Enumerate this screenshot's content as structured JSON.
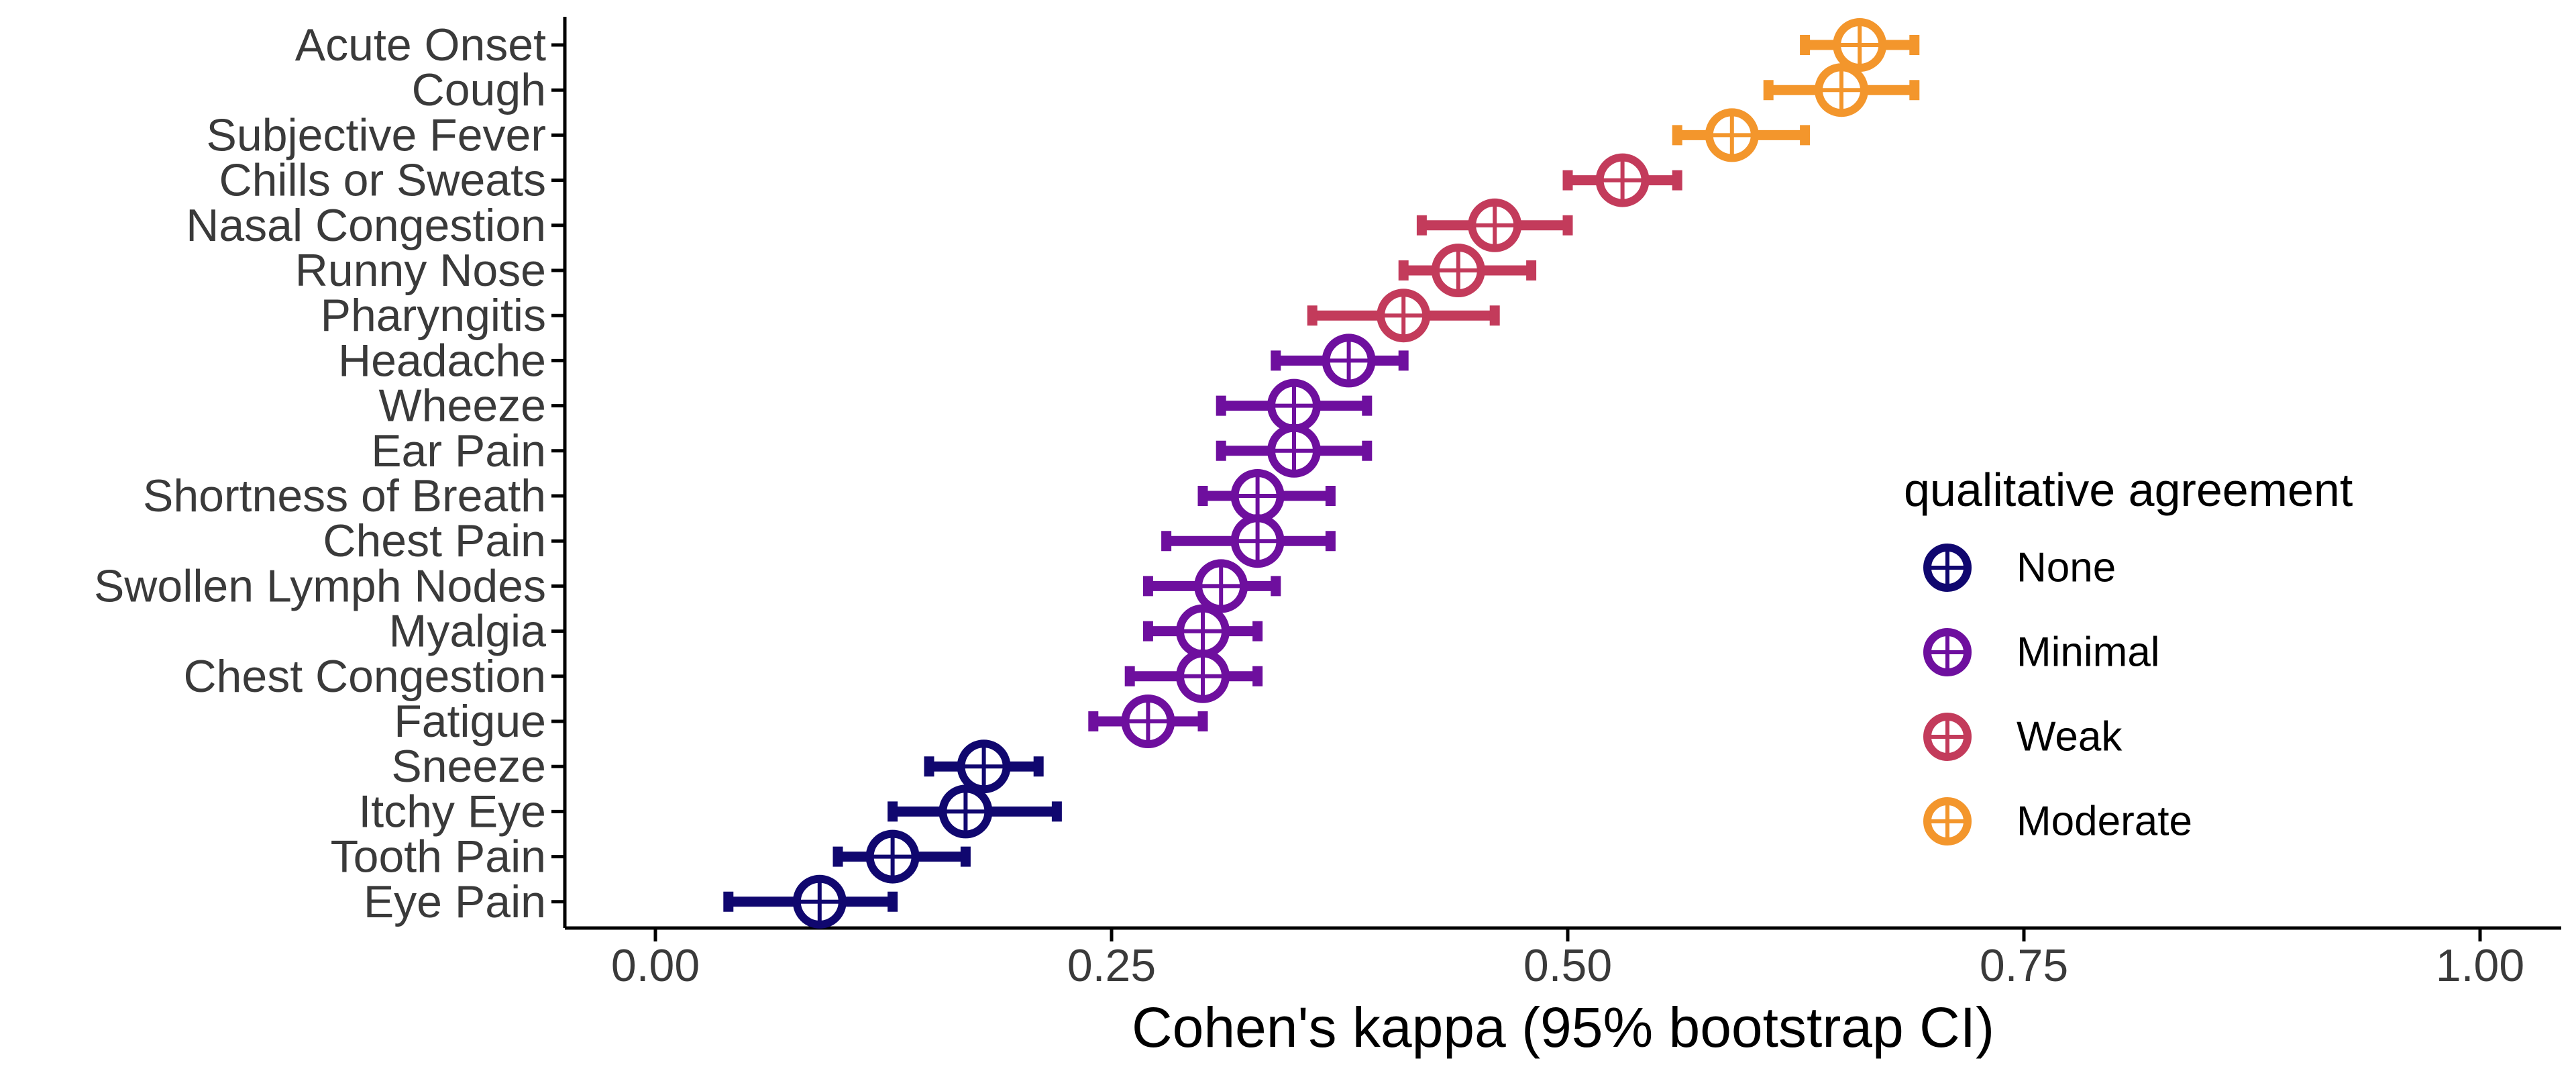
{
  "chart_data": {
    "type": "scatter",
    "title": "",
    "xlabel": "Cohen's kappa (95% bootstrap CI)",
    "ylabel": "",
    "xlim": [
      -0.1,
      1.05
    ],
    "xticks": [
      0,
      0.25,
      0.5,
      0.75,
      1
    ],
    "xtick_labels": [
      "0.00",
      "0.25",
      "0.50",
      "0.75",
      "1.00"
    ],
    "grid": false,
    "legend": {
      "title": "qualitative agreement",
      "placement": "right",
      "entries": [
        {
          "name": "None",
          "color": "#10076f"
        },
        {
          "name": "Minimal",
          "color": "#6e0f9e"
        },
        {
          "name": "Weak",
          "color": "#c33b5b"
        },
        {
          "name": "Moderate",
          "color": "#f3962c"
        }
      ]
    },
    "points": [
      {
        "symptom": "Acute Onset",
        "kappa": 0.66,
        "lower": 0.63,
        "upper": 0.69,
        "agreement": "Moderate"
      },
      {
        "symptom": "Cough",
        "kappa": 0.65,
        "lower": 0.61,
        "upper": 0.69,
        "agreement": "Moderate"
      },
      {
        "symptom": "Subjective Fever",
        "kappa": 0.59,
        "lower": 0.56,
        "upper": 0.63,
        "agreement": "Moderate"
      },
      {
        "symptom": "Chills or Sweats",
        "kappa": 0.53,
        "lower": 0.5,
        "upper": 0.56,
        "agreement": "Weak"
      },
      {
        "symptom": "Nasal Congestion",
        "kappa": 0.46,
        "lower": 0.42,
        "upper": 0.5,
        "agreement": "Weak"
      },
      {
        "symptom": "Runny Nose",
        "kappa": 0.44,
        "lower": 0.41,
        "upper": 0.48,
        "agreement": "Weak"
      },
      {
        "symptom": "Pharyngitis",
        "kappa": 0.41,
        "lower": 0.36,
        "upper": 0.46,
        "agreement": "Weak"
      },
      {
        "symptom": "Headache",
        "kappa": 0.38,
        "lower": 0.34,
        "upper": 0.41,
        "agreement": "Minimal"
      },
      {
        "symptom": "Wheeze",
        "kappa": 0.35,
        "lower": 0.31,
        "upper": 0.39,
        "agreement": "Minimal"
      },
      {
        "symptom": "Ear Pain",
        "kappa": 0.35,
        "lower": 0.31,
        "upper": 0.39,
        "agreement": "Minimal"
      },
      {
        "symptom": "Shortness of Breath",
        "kappa": 0.33,
        "lower": 0.3,
        "upper": 0.37,
        "agreement": "Minimal"
      },
      {
        "symptom": "Chest Pain",
        "kappa": 0.33,
        "lower": 0.28,
        "upper": 0.37,
        "agreement": "Minimal"
      },
      {
        "symptom": "Swollen Lymph Nodes",
        "kappa": 0.31,
        "lower": 0.27,
        "upper": 0.34,
        "agreement": "Minimal"
      },
      {
        "symptom": "Myalgia",
        "kappa": 0.3,
        "lower": 0.27,
        "upper": 0.33,
        "agreement": "Minimal"
      },
      {
        "symptom": "Chest Congestion",
        "kappa": 0.3,
        "lower": 0.26,
        "upper": 0.33,
        "agreement": "Minimal"
      },
      {
        "symptom": "Fatigue",
        "kappa": 0.27,
        "lower": 0.24,
        "upper": 0.3,
        "agreement": "Minimal"
      },
      {
        "symptom": "Sneeze",
        "kappa": 0.18,
        "lower": 0.15,
        "upper": 0.21,
        "agreement": "None"
      },
      {
        "symptom": "Itchy Eye",
        "kappa": 0.17,
        "lower": 0.13,
        "upper": 0.22,
        "agreement": "None"
      },
      {
        "symptom": "Tooth Pain",
        "kappa": 0.13,
        "lower": 0.1,
        "upper": 0.17,
        "agreement": "None"
      },
      {
        "symptom": "Eye Pain",
        "kappa": 0.09,
        "lower": 0.04,
        "upper": 0.13,
        "agreement": "None"
      }
    ]
  }
}
